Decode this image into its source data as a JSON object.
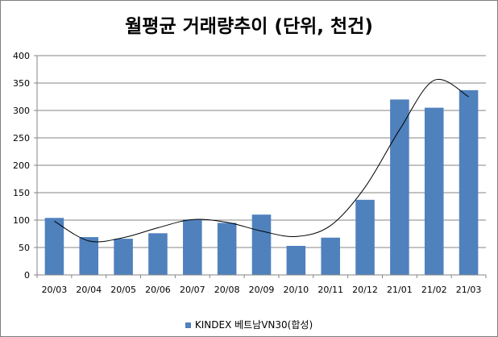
{
  "chart_data": {
    "type": "bar",
    "title": "월평균 거래량추이 (단위, 천건)",
    "categories": [
      "20/03",
      "20/04",
      "20/05",
      "20/06",
      "20/07",
      "20/08",
      "20/09",
      "20/10",
      "20/11",
      "20/12",
      "21/01",
      "21/02",
      "21/03"
    ],
    "series": [
      {
        "name": "KINDEX 베트남VN30(합성)",
        "values": [
          104,
          69,
          66,
          76,
          101,
          95,
          110,
          53,
          68,
          137,
          320,
          305,
          337
        ],
        "color": "#4f81bd"
      }
    ],
    "trendline": {
      "type": "polynomial",
      "values": [
        98,
        62,
        68,
        86,
        101,
        96,
        80,
        70,
        90,
        160,
        265,
        355,
        325
      ]
    },
    "yticks": [
      "0",
      "50",
      "100",
      "150",
      "200",
      "250",
      "300",
      "350",
      "400"
    ],
    "ylim": [
      0,
      400
    ],
    "grid": true,
    "legend": "bottom",
    "xlabel": "",
    "ylabel": ""
  }
}
